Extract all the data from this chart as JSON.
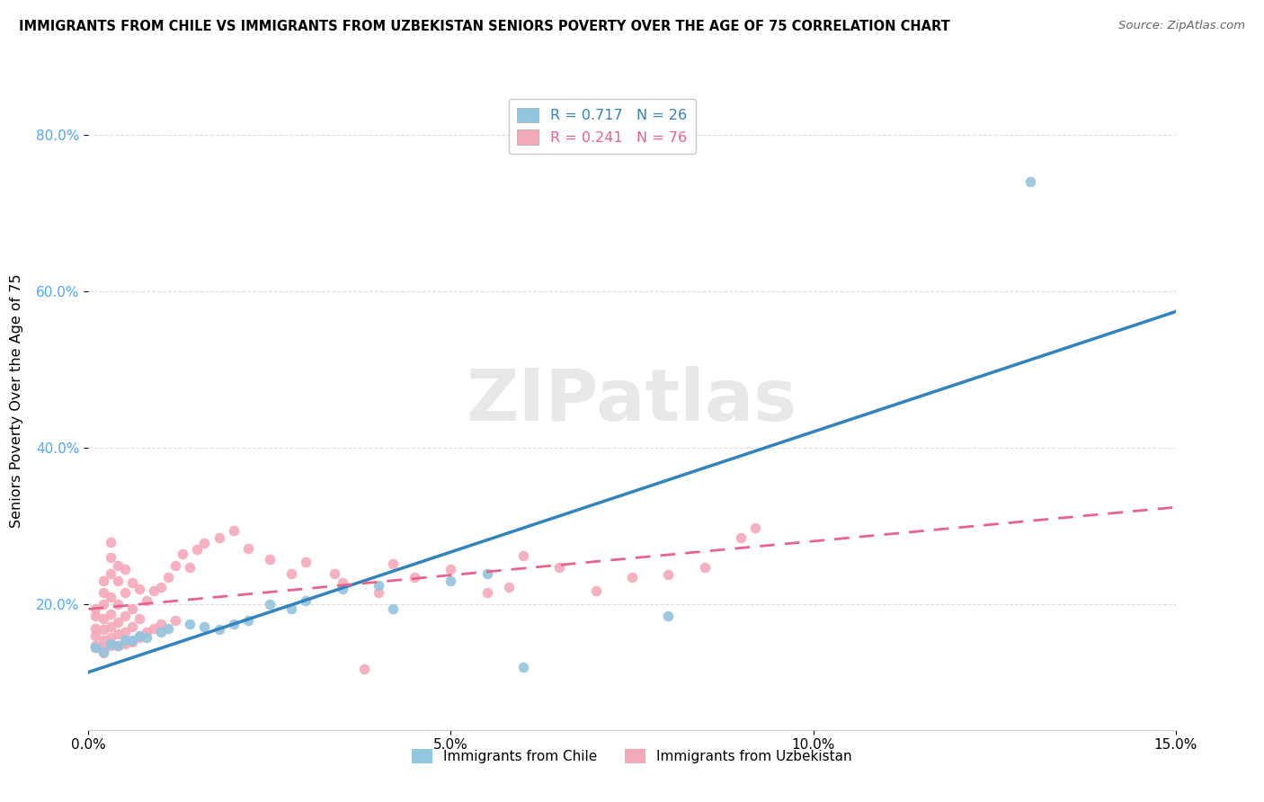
{
  "title": "IMMIGRANTS FROM CHILE VS IMMIGRANTS FROM UZBEKISTAN SENIORS POVERTY OVER THE AGE OF 75 CORRELATION CHART",
  "source": "Source: ZipAtlas.com",
  "ylabel_label": "Seniors Poverty Over the Age of 75",
  "xlim": [
    0.0,
    0.15
  ],
  "ylim": [
    0.0,
    0.85
  ],
  "xticks": [
    0.0,
    0.05,
    0.1,
    0.15
  ],
  "xtick_labels": [
    "0.0%",
    "5.0%",
    "10.0%",
    "15.0%"
  ],
  "ytick_labels": [
    "20.0%",
    "40.0%",
    "60.0%",
    "80.0%"
  ],
  "yticks": [
    0.2,
    0.4,
    0.6,
    0.8
  ],
  "chile_color": "#92c5de",
  "uzbekistan_color": "#f4a9b8",
  "chile_R": 0.717,
  "chile_N": 26,
  "uzbekistan_R": 0.241,
  "uzbekistan_N": 76,
  "chile_line_color": "#3182bd",
  "uzbekistan_line_color": "#e8638a",
  "uzbekistan_line_style": "solid",
  "watermark_text": "ZIPatlas",
  "chile_scatter": [
    [
      0.001,
      0.145
    ],
    [
      0.002,
      0.14
    ],
    [
      0.003,
      0.15
    ],
    [
      0.004,
      0.148
    ],
    [
      0.005,
      0.155
    ],
    [
      0.006,
      0.155
    ],
    [
      0.007,
      0.16
    ],
    [
      0.008,
      0.158
    ],
    [
      0.01,
      0.165
    ],
    [
      0.011,
      0.17
    ],
    [
      0.014,
      0.175
    ],
    [
      0.016,
      0.172
    ],
    [
      0.018,
      0.168
    ],
    [
      0.02,
      0.175
    ],
    [
      0.022,
      0.18
    ],
    [
      0.025,
      0.2
    ],
    [
      0.028,
      0.195
    ],
    [
      0.03,
      0.205
    ],
    [
      0.035,
      0.22
    ],
    [
      0.04,
      0.225
    ],
    [
      0.042,
      0.195
    ],
    [
      0.05,
      0.23
    ],
    [
      0.055,
      0.24
    ],
    [
      0.06,
      0.12
    ],
    [
      0.08,
      0.185
    ],
    [
      0.13,
      0.74
    ]
  ],
  "uzbekistan_scatter": [
    [
      0.001,
      0.145
    ],
    [
      0.001,
      0.148
    ],
    [
      0.001,
      0.16
    ],
    [
      0.001,
      0.17
    ],
    [
      0.001,
      0.185
    ],
    [
      0.001,
      0.195
    ],
    [
      0.002,
      0.138
    ],
    [
      0.002,
      0.145
    ],
    [
      0.002,
      0.155
    ],
    [
      0.002,
      0.168
    ],
    [
      0.002,
      0.182
    ],
    [
      0.002,
      0.2
    ],
    [
      0.002,
      0.215
    ],
    [
      0.002,
      0.23
    ],
    [
      0.003,
      0.148
    ],
    [
      0.003,
      0.158
    ],
    [
      0.003,
      0.172
    ],
    [
      0.003,
      0.188
    ],
    [
      0.003,
      0.21
    ],
    [
      0.003,
      0.24
    ],
    [
      0.003,
      0.26
    ],
    [
      0.003,
      0.28
    ],
    [
      0.004,
      0.148
    ],
    [
      0.004,
      0.162
    ],
    [
      0.004,
      0.178
    ],
    [
      0.004,
      0.2
    ],
    [
      0.004,
      0.23
    ],
    [
      0.004,
      0.25
    ],
    [
      0.005,
      0.15
    ],
    [
      0.005,
      0.165
    ],
    [
      0.005,
      0.185
    ],
    [
      0.005,
      0.215
    ],
    [
      0.005,
      0.245
    ],
    [
      0.006,
      0.152
    ],
    [
      0.006,
      0.172
    ],
    [
      0.006,
      0.195
    ],
    [
      0.006,
      0.228
    ],
    [
      0.007,
      0.158
    ],
    [
      0.007,
      0.182
    ],
    [
      0.007,
      0.22
    ],
    [
      0.008,
      0.165
    ],
    [
      0.008,
      0.205
    ],
    [
      0.009,
      0.17
    ],
    [
      0.009,
      0.218
    ],
    [
      0.01,
      0.175
    ],
    [
      0.01,
      0.222
    ],
    [
      0.011,
      0.235
    ],
    [
      0.012,
      0.18
    ],
    [
      0.012,
      0.25
    ],
    [
      0.013,
      0.265
    ],
    [
      0.014,
      0.248
    ],
    [
      0.015,
      0.27
    ],
    [
      0.016,
      0.278
    ],
    [
      0.018,
      0.285
    ],
    [
      0.02,
      0.295
    ],
    [
      0.022,
      0.272
    ],
    [
      0.025,
      0.258
    ],
    [
      0.028,
      0.24
    ],
    [
      0.03,
      0.255
    ],
    [
      0.034,
      0.24
    ],
    [
      0.035,
      0.228
    ],
    [
      0.038,
      0.118
    ],
    [
      0.04,
      0.215
    ],
    [
      0.042,
      0.252
    ],
    [
      0.045,
      0.235
    ],
    [
      0.05,
      0.245
    ],
    [
      0.055,
      0.215
    ],
    [
      0.058,
      0.222
    ],
    [
      0.06,
      0.262
    ],
    [
      0.065,
      0.248
    ],
    [
      0.07,
      0.218
    ],
    [
      0.075,
      0.235
    ],
    [
      0.08,
      0.238
    ],
    [
      0.085,
      0.248
    ],
    [
      0.09,
      0.285
    ],
    [
      0.092,
      0.298
    ]
  ],
  "legend_chile_text": "R = 0.717   N = 26",
  "legend_uzb_text": "R = 0.241   N = 76",
  "bottom_legend_chile": "Immigrants from Chile",
  "bottom_legend_uzb": "Immigrants from Uzbekistan"
}
